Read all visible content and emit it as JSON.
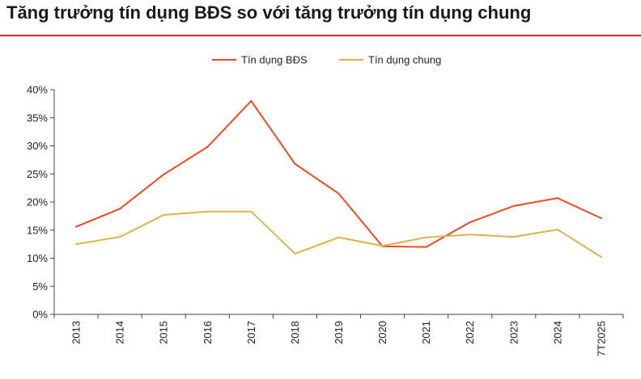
{
  "title": "Tăng trưởng tín dụng BĐS so với tăng trưởng tín dụng chung",
  "colors": {
    "accent_rule": "#e8251f",
    "series_bds": "#ee4b1f",
    "series_chung": "#dcb24c",
    "axis": "#444444"
  },
  "chart_data": {
    "type": "line",
    "title": "Tăng trưởng tín dụng BĐS so với tăng trưởng tín dụng chung",
    "xlabel": "",
    "ylabel": "",
    "categories": [
      "2013",
      "2014",
      "2015",
      "2016",
      "2017",
      "2018",
      "2019",
      "2020",
      "2021",
      "2022",
      "2023",
      "2024",
      "7T2025"
    ],
    "ylim": [
      0,
      40
    ],
    "yticks": [
      0,
      5,
      10,
      15,
      20,
      25,
      30,
      35,
      40
    ],
    "ytick_labels": [
      "0%",
      "5%",
      "10%",
      "15%",
      "20%",
      "25%",
      "30%",
      "35%",
      "40%"
    ],
    "grid": false,
    "legend_position": "top-center",
    "series": [
      {
        "name": "Tín dụng BĐS",
        "color": "#ee4b1f",
        "values": [
          15.6,
          18.8,
          24.9,
          29.8,
          38.0,
          26.8,
          21.5,
          12.1,
          12.0,
          16.4,
          19.3,
          20.7,
          17.1
        ]
      },
      {
        "name": "Tín dụng chung",
        "color": "#dcb24c",
        "values": [
          12.5,
          13.8,
          17.7,
          18.3,
          18.3,
          10.8,
          13.7,
          12.2,
          13.7,
          14.2,
          13.8,
          15.1,
          10.2
        ]
      }
    ]
  }
}
